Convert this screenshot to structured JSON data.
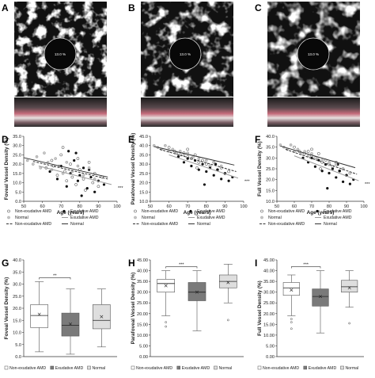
{
  "panel_labels": {
    "A": "A",
    "B": "B",
    "C": "C",
    "D": "D",
    "E": "E",
    "F": "F",
    "G": "G",
    "H": "H",
    "I": "I"
  },
  "octa_images": [
    {
      "panel": "A",
      "center_label": "13.0 %"
    },
    {
      "panel": "B",
      "center_label": "13.0 %"
    },
    {
      "panel": "C",
      "center_label": "13.0 %"
    }
  ],
  "colors": {
    "exudative": "#7a7a7a",
    "non_exudative": "#ffffff",
    "normal": "#dedede",
    "ink": "#222222"
  },
  "chart_data": [
    {
      "panel": "D",
      "type": "scatter",
      "xlabel": "Age (years)",
      "ylabel": "Foveal Vessel Density (%)",
      "xlim": [
        50,
        100
      ],
      "ylim": [
        0,
        35
      ],
      "xticks": [
        50,
        60,
        70,
        80,
        90,
        100
      ],
      "yticks": [
        0,
        5,
        10,
        15,
        20,
        25,
        30,
        35
      ],
      "significance": "***",
      "legend": [
        "Non-exudative AMD",
        "Exudative AMD",
        "Normal",
        "Exudative AMD",
        "Non-exudative AMD",
        "Normal"
      ],
      "series": [
        {
          "name": "Non-exudative AMD",
          "points": [
            [
              62,
              18
            ],
            [
              65,
              22
            ],
            [
              68,
              14
            ],
            [
              70,
              25
            ],
            [
              72,
              16
            ],
            [
              73,
              11
            ],
            [
              75,
              20
            ],
            [
              76,
              13
            ],
            [
              78,
              9
            ],
            [
              80,
              17
            ],
            [
              82,
              12
            ],
            [
              85,
              21
            ],
            [
              87,
              10
            ],
            [
              88,
              15
            ],
            [
              90,
              8
            ],
            [
              92,
              13
            ],
            [
              71,
              29
            ],
            [
              66,
              19
            ],
            [
              83,
              6
            ],
            [
              79,
              23
            ]
          ]
        },
        {
          "name": "Exudative AMD",
          "points": [
            [
              64,
              16
            ],
            [
              68,
              12
            ],
            [
              70,
              19
            ],
            [
              73,
              8
            ],
            [
              75,
              15
            ],
            [
              77,
              22
            ],
            [
              79,
              11
            ],
            [
              80,
              14
            ],
            [
              82,
              18
            ],
            [
              84,
              7
            ],
            [
              86,
              13
            ],
            [
              88,
              5
            ],
            [
              90,
              11
            ],
            [
              93,
              9
            ],
            [
              74,
              27
            ],
            [
              81,
              3
            ],
            [
              85,
              17
            ],
            [
              78,
              26
            ]
          ]
        },
        {
          "name": "Normal",
          "points": [
            [
              52,
              22
            ],
            [
              55,
              20
            ],
            [
              57,
              24
            ],
            [
              59,
              18
            ],
            [
              61,
              26
            ],
            [
              63,
              21
            ],
            [
              65,
              17
            ],
            [
              67,
              23
            ],
            [
              69,
              19
            ],
            [
              71,
              15
            ],
            [
              73,
              21
            ],
            [
              76,
              16
            ],
            [
              79,
              19
            ],
            [
              82,
              14
            ],
            [
              85,
              18
            ],
            [
              88,
              12
            ]
          ]
        }
      ],
      "trendlines": [
        {
          "name": "Normal",
          "from": [
            50,
            23.5
          ],
          "to": [
            95,
            13
          ]
        },
        {
          "name": "Non-exudative AMD",
          "from": [
            55,
            21.5
          ],
          "to": [
            95,
            12
          ]
        },
        {
          "name": "Exudative AMD",
          "from": [
            58,
            19
          ],
          "to": [
            97,
            9
          ]
        }
      ]
    },
    {
      "panel": "E",
      "type": "scatter",
      "xlabel": "Age (years)",
      "ylabel": "Parafoveal Vessel Density (%)",
      "xlim": [
        50,
        100
      ],
      "ylim": [
        10,
        45
      ],
      "xticks": [
        50,
        60,
        70,
        80,
        90,
        100
      ],
      "yticks": [
        10,
        15,
        20,
        25,
        30,
        35,
        40,
        45
      ],
      "significance": "***",
      "legend": [
        "Non-exudative AMD",
        "Exudative AMD",
        "Normal",
        "Exudative AMD",
        "Non-exudative AMD",
        "Normal"
      ],
      "series": [
        {
          "name": "Non-exudative AMD",
          "points": [
            [
              60,
              39
            ],
            [
              63,
              37
            ],
            [
              66,
              35
            ],
            [
              68,
              36
            ],
            [
              70,
              34
            ],
            [
              72,
              33
            ],
            [
              74,
              35
            ],
            [
              76,
              31
            ],
            [
              78,
              32
            ],
            [
              80,
              30
            ],
            [
              82,
              29
            ],
            [
              84,
              31
            ],
            [
              86,
              27
            ],
            [
              88,
              28
            ],
            [
              90,
              25
            ],
            [
              92,
              26
            ],
            [
              75,
              28
            ],
            [
              70,
              38
            ]
          ]
        },
        {
          "name": "Exudative AMD",
          "points": [
            [
              65,
              34
            ],
            [
              68,
              31
            ],
            [
              70,
              33
            ],
            [
              72,
              29
            ],
            [
              74,
              32
            ],
            [
              76,
              27
            ],
            [
              78,
              30
            ],
            [
              80,
              26
            ],
            [
              82,
              28
            ],
            [
              84,
              24
            ],
            [
              86,
              27
            ],
            [
              88,
              22
            ],
            [
              90,
              25
            ],
            [
              92,
              21
            ],
            [
              94,
              23
            ],
            [
              79,
              19
            ],
            [
              85,
              30
            ]
          ]
        },
        {
          "name": "Normal",
          "points": [
            [
              52,
              40
            ],
            [
              54,
              39
            ],
            [
              56,
              38
            ],
            [
              58,
              40
            ],
            [
              60,
              37
            ],
            [
              62,
              38
            ],
            [
              64,
              36
            ],
            [
              66,
              37
            ],
            [
              68,
              35
            ],
            [
              70,
              36
            ],
            [
              73,
              34
            ],
            [
              76,
              33
            ],
            [
              80,
              32
            ],
            [
              84,
              31
            ],
            [
              88,
              29
            ]
          ]
        }
      ],
      "trendlines": [
        {
          "name": "Normal",
          "from": [
            52,
            39.5
          ],
          "to": [
            95,
            29.5
          ]
        },
        {
          "name": "Non-exudative AMD",
          "from": [
            55,
            38
          ],
          "to": [
            96,
            26
          ]
        },
        {
          "name": "Exudative AMD",
          "from": [
            60,
            35
          ],
          "to": [
            97,
            22.5
          ]
        }
      ]
    },
    {
      "panel": "F",
      "type": "scatter",
      "xlabel": "Age (years)",
      "ylabel": "Full Vessel Density (%)",
      "xlim": [
        50,
        100
      ],
      "ylim": [
        10,
        40
      ],
      "xticks": [
        50,
        60,
        70,
        80,
        90,
        100
      ],
      "yticks": [
        10,
        15,
        20,
        25,
        30,
        35,
        40
      ],
      "significance": "***",
      "legend": [
        "Non-exudative AMD",
        "Exudative AMD",
        "Normal",
        "Exudative AMD",
        "Non-exudative AMD",
        "Normal"
      ],
      "series": [
        {
          "name": "Non-exudative AMD",
          "points": [
            [
              60,
              35
            ],
            [
              63,
              33
            ],
            [
              66,
              32
            ],
            [
              68,
              33
            ],
            [
              70,
              31
            ],
            [
              72,
              30
            ],
            [
              74,
              32
            ],
            [
              76,
              28
            ],
            [
              78,
              29
            ],
            [
              80,
              27
            ],
            [
              82,
              26
            ],
            [
              84,
              28
            ],
            [
              86,
              24
            ],
            [
              88,
              25
            ],
            [
              90,
              22
            ],
            [
              92,
              23
            ],
            [
              75,
              25
            ],
            [
              70,
              34
            ]
          ]
        },
        {
          "name": "Exudative AMD",
          "points": [
            [
              65,
              30
            ],
            [
              68,
              28
            ],
            [
              70,
              30
            ],
            [
              72,
              26
            ],
            [
              74,
              29
            ],
            [
              76,
              24
            ],
            [
              78,
              27
            ],
            [
              80,
              23
            ],
            [
              82,
              25
            ],
            [
              84,
              21
            ],
            [
              86,
              24
            ],
            [
              88,
              19
            ],
            [
              90,
              22
            ],
            [
              92,
              18
            ],
            [
              94,
              20
            ],
            [
              79,
              16
            ],
            [
              85,
              27
            ]
          ]
        },
        {
          "name": "Normal",
          "points": [
            [
              52,
              36
            ],
            [
              54,
              35
            ],
            [
              56,
              34
            ],
            [
              58,
              36
            ],
            [
              60,
              33
            ],
            [
              62,
              34
            ],
            [
              64,
              32
            ],
            [
              66,
              33
            ],
            [
              68,
              31
            ],
            [
              70,
              32
            ],
            [
              73,
              30
            ],
            [
              76,
              29
            ],
            [
              80,
              28
            ],
            [
              84,
              27
            ],
            [
              88,
              25
            ]
          ]
        }
      ],
      "trendlines": [
        {
          "name": "Normal",
          "from": [
            52,
            35.5
          ],
          "to": [
            95,
            25.5
          ]
        },
        {
          "name": "Non-exudative AMD",
          "from": [
            55,
            34
          ],
          "to": [
            96,
            22.5
          ]
        },
        {
          "name": "Exudative AMD",
          "from": [
            60,
            31
          ],
          "to": [
            97,
            19.5
          ]
        }
      ]
    },
    {
      "panel": "G",
      "type": "box",
      "ylabel": "Foveal Vessel Density (%)",
      "ylim": [
        0,
        40
      ],
      "yticks": [
        0,
        5,
        10,
        15,
        20,
        25,
        30,
        35,
        40
      ],
      "significance": "**",
      "sig_pair": [
        0,
        1
      ],
      "legend": [
        "Non-exudative AMD",
        "Exudative AMD",
        "Normal"
      ],
      "boxes": [
        {
          "name": "Non-exudative AMD",
          "whisker_low": 2,
          "q1": 12,
          "median": 17,
          "q3": 21.5,
          "whisker_high": 31,
          "mean": 17.5,
          "outliers": []
        },
        {
          "name": "Exudative AMD",
          "whisker_low": 1,
          "q1": 8.5,
          "median": 13,
          "q3": 18,
          "whisker_high": 28,
          "mean": 13.5,
          "outliers": []
        },
        {
          "name": "Normal",
          "whisker_low": 4,
          "q1": 11.5,
          "median": 15,
          "q3": 21.5,
          "whisker_high": 28,
          "mean": 16.5,
          "outliers": []
        }
      ]
    },
    {
      "panel": "H",
      "type": "box",
      "ylabel": "Parafoveal Vessel Density (%)",
      "ylim": [
        0,
        45
      ],
      "yticks": [
        0,
        5,
        10,
        15,
        20,
        25,
        30,
        35,
        40,
        45
      ],
      "significance": "***",
      "sig_pair": [
        0,
        1
      ],
      "legend": [
        "Non-exudative AMD",
        "Exudative AMD",
        "Normal"
      ],
      "boxes": [
        {
          "name": "Non-exudative AMD",
          "whisker_low": 19,
          "q1": 30,
          "median": 34,
          "q3": 36,
          "whisker_high": 40,
          "mean": 33,
          "outliers": [
            14,
            16
          ]
        },
        {
          "name": "Exudative AMD",
          "whisker_low": 12,
          "q1": 26,
          "median": 30,
          "q3": 34.5,
          "whisker_high": 40,
          "mean": 30,
          "outliers": []
        },
        {
          "name": "Normal",
          "whisker_low": 25,
          "q1": 32,
          "median": 35,
          "q3": 38,
          "whisker_high": 43,
          "mean": 34.5,
          "outliers": [
            17
          ]
        }
      ]
    },
    {
      "panel": "I",
      "type": "box",
      "ylabel": "Full Vessel Density (%)",
      "ylim": [
        0,
        45
      ],
      "yticks": [
        0,
        5,
        10,
        15,
        20,
        25,
        30,
        35,
        40,
        45
      ],
      "significance": "***",
      "sig_pair": [
        0,
        1
      ],
      "legend": [
        "Non-exudative AMD",
        "Exudative AMD",
        "Normal"
      ],
      "boxes": [
        {
          "name": "Non-exudative AMD",
          "whisker_low": 19,
          "q1": 28.5,
          "median": 32,
          "q3": 34.5,
          "whisker_high": 38,
          "mean": 31,
          "outliers": [
            13,
            16,
            17.5
          ]
        },
        {
          "name": "Exudative AMD",
          "whisker_low": 11,
          "q1": 23.5,
          "median": 28,
          "q3": 31.5,
          "whisker_high": 40,
          "mean": 28,
          "outliers": []
        },
        {
          "name": "Normal",
          "whisker_low": 23,
          "q1": 30,
          "median": 32.5,
          "q3": 35.5,
          "whisker_high": 40,
          "mean": 32,
          "outliers": [
            15.5
          ]
        }
      ]
    }
  ]
}
